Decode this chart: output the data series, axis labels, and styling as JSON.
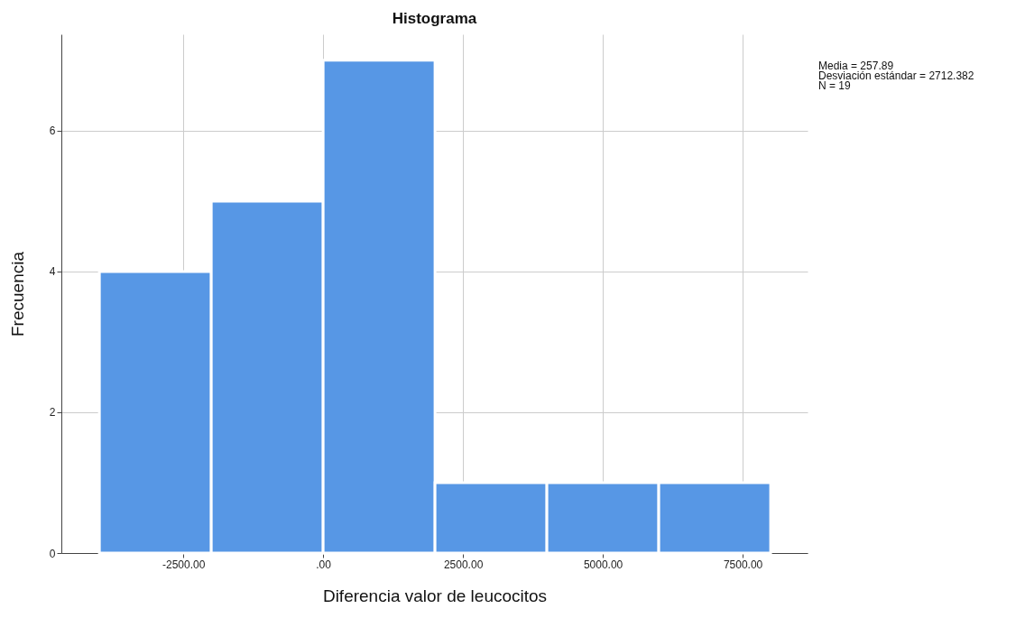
{
  "chart_data": {
    "type": "histogram",
    "title": "Histograma",
    "xlabel": "Diferencia valor de leucocitos",
    "ylabel": "Frecuencia",
    "bins": [
      -4000,
      -2000,
      0,
      2000,
      4000,
      6000,
      8000
    ],
    "values": [
      4,
      5,
      7,
      1,
      1,
      1
    ],
    "color": "#5797e5",
    "xlim": [
      -4680,
      8660
    ],
    "xticks": [
      {
        "value": -2500,
        "label": "-2500.00"
      },
      {
        "value": 0,
        "label": ".00"
      },
      {
        "value": 2500,
        "label": "2500.00"
      },
      {
        "value": 5000,
        "label": "5000.00"
      },
      {
        "value": 7500,
        "label": "7500.00"
      }
    ],
    "ylim": [
      0,
      7.37
    ],
    "yticks": [
      0,
      2,
      4,
      6
    ],
    "grid": true,
    "annotations": [
      "Media = 257.89",
      "Desviación estándar = 2712.382",
      "N = 19"
    ]
  }
}
